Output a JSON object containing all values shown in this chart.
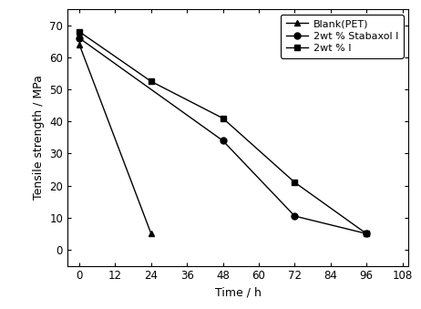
{
  "series": [
    {
      "label": "Blank(PET)",
      "x": [
        0,
        24
      ],
      "y": [
        64,
        5
      ],
      "marker": "^",
      "color": "#000000",
      "linestyle": "-",
      "markersize": 5,
      "linewidth": 1.0
    },
    {
      "label": "2wt % Stabaxol I",
      "x": [
        0,
        48,
        72,
        96
      ],
      "y": [
        66,
        34,
        10.5,
        5
      ],
      "marker": "o",
      "color": "#000000",
      "linestyle": "-",
      "markersize": 5,
      "linewidth": 1.0
    },
    {
      "label": "2wt % I",
      "x": [
        0,
        24,
        48,
        72,
        96
      ],
      "y": [
        68,
        52.5,
        41,
        21,
        5
      ],
      "marker": "s",
      "color": "#000000",
      "linestyle": "-",
      "markersize": 5,
      "linewidth": 1.0
    }
  ],
  "xlabel": "Time / h",
  "ylabel": "Tensile strength / MPa",
  "xlim": [
    -4,
    110
  ],
  "ylim": [
    -5,
    75
  ],
  "xticks": [
    0,
    12,
    24,
    36,
    48,
    60,
    72,
    84,
    96,
    108
  ],
  "yticks": [
    0,
    10,
    20,
    30,
    40,
    50,
    60,
    70
  ],
  "background_color": "#ffffff",
  "legend_loc": "upper right",
  "legend_fontsize": 8,
  "axis_fontsize": 9,
  "tick_fontsize": 8.5
}
